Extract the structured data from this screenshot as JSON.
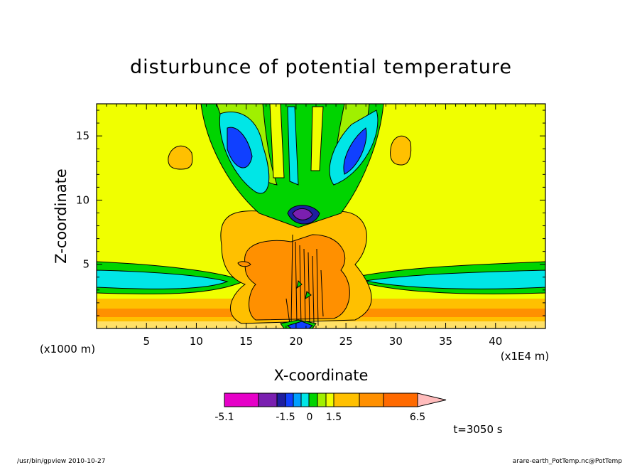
{
  "chart_data": {
    "type": "contour",
    "title": "disturbunce of potential temperature",
    "xlabel": "X-coordinate",
    "ylabel": "Z-coordinate",
    "x_unit_label": "(x1000 m)",
    "x_scale_label": "(x1E4 m)",
    "xlim": [
      0,
      45
    ],
    "ylim": [
      0,
      17.5
    ],
    "x_ticks": [
      5,
      10,
      15,
      20,
      25,
      30,
      35,
      40
    ],
    "y_ticks": [
      5,
      10,
      15
    ],
    "colorbar": {
      "ticks": [
        "-5.1",
        "-1.5",
        "0",
        "1.5",
        "6.5"
      ],
      "colors": [
        "#e600c8",
        "#7a1fb0",
        "#1e1ea0",
        "#1040ff",
        "#00a0ff",
        "#00e6e6",
        "#00d400",
        "#a0f000",
        "#f0ff00",
        "#ffc000",
        "#ff9000",
        "#ff6a00",
        "#ff1a1a",
        "#ff8080",
        "#ffbcbc"
      ]
    },
    "time_label": "t=3050 s"
  },
  "footer": {
    "left": "/usr/bin/gpview  2010-10-27",
    "right": "arare-earth_PotTemp.nc@PotTemp"
  }
}
